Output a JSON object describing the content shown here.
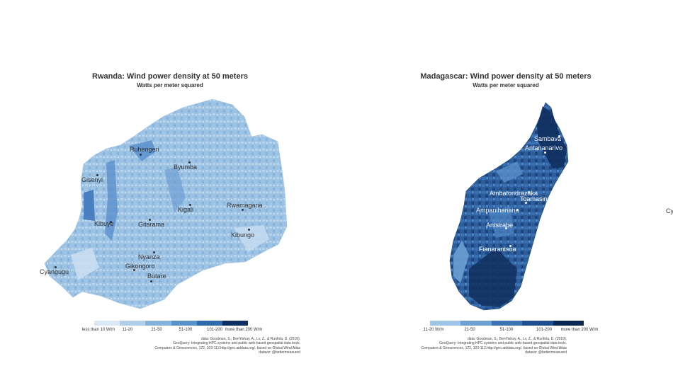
{
  "left": {
    "title": "Rwanda: Wind power density at 50 meters",
    "subtitle": "Watts per meter squared",
    "cities": [
      "Ruhengeri",
      "Gisenyi",
      "Byumba",
      "Kigali",
      "Rwamagana",
      "Kibuye",
      "Gitarama",
      "Kibungo",
      "Nyanza",
      "Gikongoro",
      "Butare",
      "Cyangugu"
    ],
    "legend": {
      "labels": [
        "less than 10 W/m",
        "11-20",
        "21-50",
        "51-100",
        "101-200",
        "more than 200 W/m"
      ],
      "colors": [
        "#dbe8f5",
        "#b3cfe8",
        "#86b1dc",
        "#5a91c9",
        "#2f6aac",
        "#0e2f5f"
      ]
    },
    "caption": [
      "data: Goodman, S., BenYishay, A., Lv, Z., & Runfola, D. (2019).",
      "GeoQuery: Integrating HPC systems and public web-based geospatial data tools.",
      "Computers & Geosciences, 122, 103-112.http://geo.aiddata.org/. based on Global Wind Atlas",
      "dataviz: @bettermeasured"
    ]
  },
  "right": {
    "title": "Madagascar: Wind power density at 50 meters",
    "subtitle": "Watts per meter squared",
    "cities": [
      "Sambava",
      "Antananarivo",
      "Ambatondrazaka",
      "Toamasina",
      "Ampanihanana",
      "Antsirabe",
      "Fianarantsoa"
    ],
    "legend": {
      "labels": [
        "11-20 W/m",
        "21-50",
        "51-100",
        "101-200",
        "more than 200 W/m"
      ],
      "colors": [
        "#9ec4e6",
        "#6fa0d2",
        "#3f72b4",
        "#1f4f8f",
        "#0b2650"
      ]
    },
    "caption": [
      "data: Goodman, S., BenYishay, A., Lv, Z., & Runfola, D. (2019).",
      "GeoQuery: Integrating HPC systems and public web-based geospatial data tools.",
      "Computers & Geosciences, 122, 103-112.http://geo.aiddata.org/. based on Global Wind Atlas",
      "dataviz: @bettermeasured"
    ]
  },
  "edge_text": "Cy"
}
